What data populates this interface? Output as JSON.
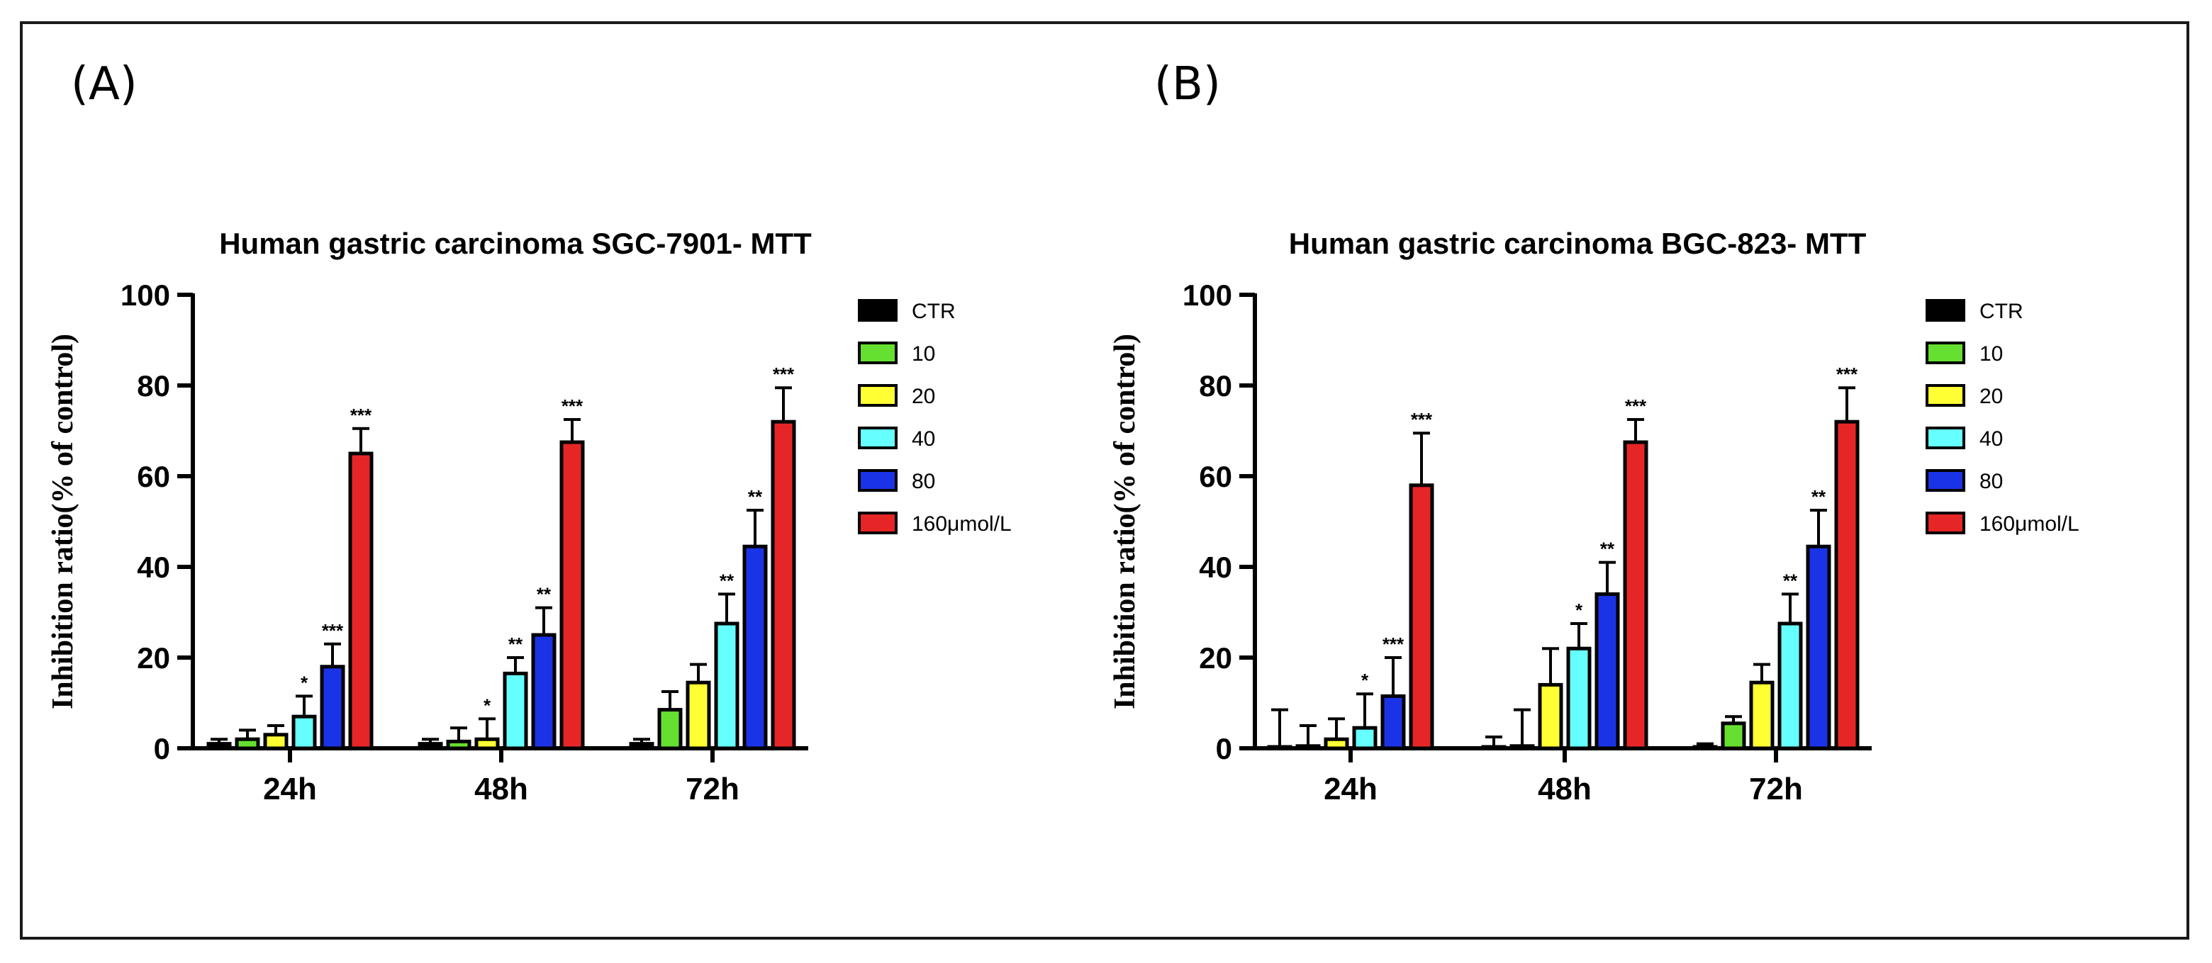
{
  "colors": {
    "CTR": "#000000",
    "10": "#66e030",
    "20": "#ffff33",
    "40": "#66ffff",
    "80": "#1a33e6",
    "160": "#e62626"
  },
  "chart_data": [
    {
      "panel_label": "(A)",
      "type": "bar",
      "title": "Human gastric carcinoma SGC-7901- MTT",
      "xlabel": "",
      "ylabel": "Inhibition ratio(% of control)",
      "ylim": [
        0,
        100
      ],
      "yticks": [
        "0",
        "20",
        "40",
        "60",
        "80",
        "100"
      ],
      "categories": [
        "24h",
        "48h",
        "72h"
      ],
      "legend_position": "right",
      "series": [
        {
          "name": "CTR",
          "values": [
            1,
            1,
            1
          ],
          "errors": [
            1,
            1,
            1
          ],
          "sig": [
            "",
            "",
            ""
          ]
        },
        {
          "name": "10",
          "values": [
            2,
            1.5,
            8.5
          ],
          "errors": [
            2,
            3,
            4
          ],
          "sig": [
            "",
            "",
            ""
          ]
        },
        {
          "name": "20",
          "values": [
            3,
            2,
            14.5
          ],
          "errors": [
            2,
            4.5,
            4
          ],
          "sig": [
            "",
            "*",
            ""
          ]
        },
        {
          "name": "40",
          "values": [
            7,
            16.5,
            27.5
          ],
          "errors": [
            4.5,
            3.5,
            6.5
          ],
          "sig": [
            "*",
            "**",
            "**"
          ]
        },
        {
          "name": "80",
          "values": [
            18,
            25,
            44.5
          ],
          "errors": [
            5,
            6,
            8
          ],
          "sig": [
            "***",
            "**",
            "**"
          ]
        },
        {
          "name": "160μmol/L",
          "values": [
            65,
            67.5,
            72
          ],
          "errors": [
            5.5,
            5,
            7.5
          ],
          "sig": [
            "***",
            "***",
            "***"
          ]
        }
      ]
    },
    {
      "panel_label": "(B)",
      "type": "bar",
      "title": "Human gastric carcinoma BGC-823- MTT",
      "xlabel": "",
      "ylabel": "Inhibition ratio(% of control)",
      "ylim": [
        0,
        100
      ],
      "yticks": [
        "0",
        "20",
        "40",
        "60",
        "80",
        "100"
      ],
      "categories": [
        "24h",
        "48h",
        "72h"
      ],
      "legend_position": "right",
      "series": [
        {
          "name": "CTR",
          "values": [
            0,
            0,
            0
          ],
          "errors": [
            8.5,
            2.5,
            1
          ],
          "sig": [
            "",
            "",
            ""
          ]
        },
        {
          "name": "10",
          "values": [
            0.5,
            0.5,
            5.5
          ],
          "errors": [
            4.5,
            8,
            1.5
          ],
          "sig": [
            "",
            "",
            ""
          ]
        },
        {
          "name": "20",
          "values": [
            2,
            14,
            14.5
          ],
          "errors": [
            4.5,
            8,
            4
          ],
          "sig": [
            "",
            "",
            ""
          ]
        },
        {
          "name": "40",
          "values": [
            4.5,
            22,
            27.5
          ],
          "errors": [
            7.5,
            5.5,
            6.5
          ],
          "sig": [
            "*",
            "*",
            "**"
          ]
        },
        {
          "name": "80",
          "values": [
            11.5,
            34,
            44.5
          ],
          "errors": [
            8.5,
            7,
            8
          ],
          "sig": [
            "***",
            "**",
            "**"
          ]
        },
        {
          "name": "160μmol/L",
          "values": [
            58,
            67.5,
            72
          ],
          "errors": [
            11.5,
            5,
            7.5
          ],
          "sig": [
            "***",
            "***",
            "***"
          ]
        }
      ]
    }
  ]
}
